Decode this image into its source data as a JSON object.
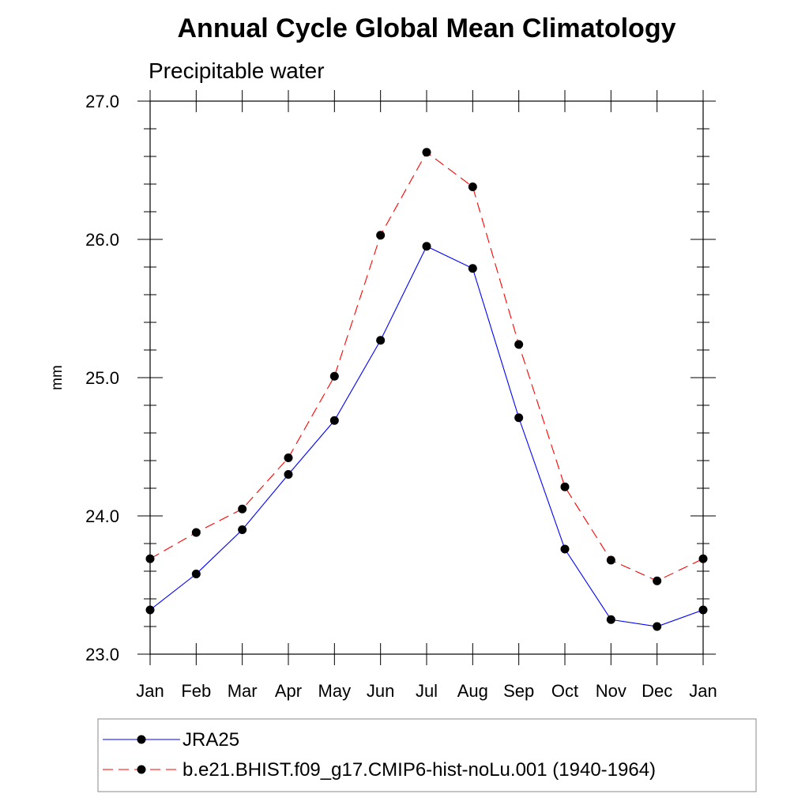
{
  "chart_data": {
    "type": "line",
    "title": "Annual Cycle Global Mean Climatology",
    "subtitle": "Precipitable water",
    "xlabel": "",
    "ylabel": "mm",
    "ylim": [
      23.0,
      27.0
    ],
    "y_ticks": [
      "23.0",
      "24.0",
      "25.0",
      "26.0",
      "27.0"
    ],
    "y_tick_values": [
      23.0,
      24.0,
      25.0,
      26.0,
      27.0
    ],
    "y_minor_step": 0.2,
    "categories": [
      "Jan",
      "Feb",
      "Mar",
      "Apr",
      "May",
      "Jun",
      "Jul",
      "Aug",
      "Sep",
      "Oct",
      "Nov",
      "Dec",
      "Jan"
    ],
    "legend_position": "bottom",
    "series": [
      {
        "name": "JRA25",
        "color": "#0000ff",
        "line_style": "solid",
        "marker": "filled-circle",
        "values": [
          23.32,
          23.58,
          23.9,
          24.3,
          24.69,
          25.27,
          25.95,
          25.79,
          24.71,
          23.76,
          23.25,
          23.2,
          23.32
        ]
      },
      {
        "name": "b.e21.BHIST.f09_g17.CMIP6-hist-noLu.001 (1940-1964)",
        "color": "#ff0000",
        "line_style": "dashed",
        "marker": "filled-circle",
        "values": [
          23.69,
          23.88,
          24.05,
          24.42,
          25.01,
          26.03,
          26.63,
          26.38,
          25.24,
          24.21,
          23.68,
          23.53,
          23.69
        ]
      }
    ]
  }
}
